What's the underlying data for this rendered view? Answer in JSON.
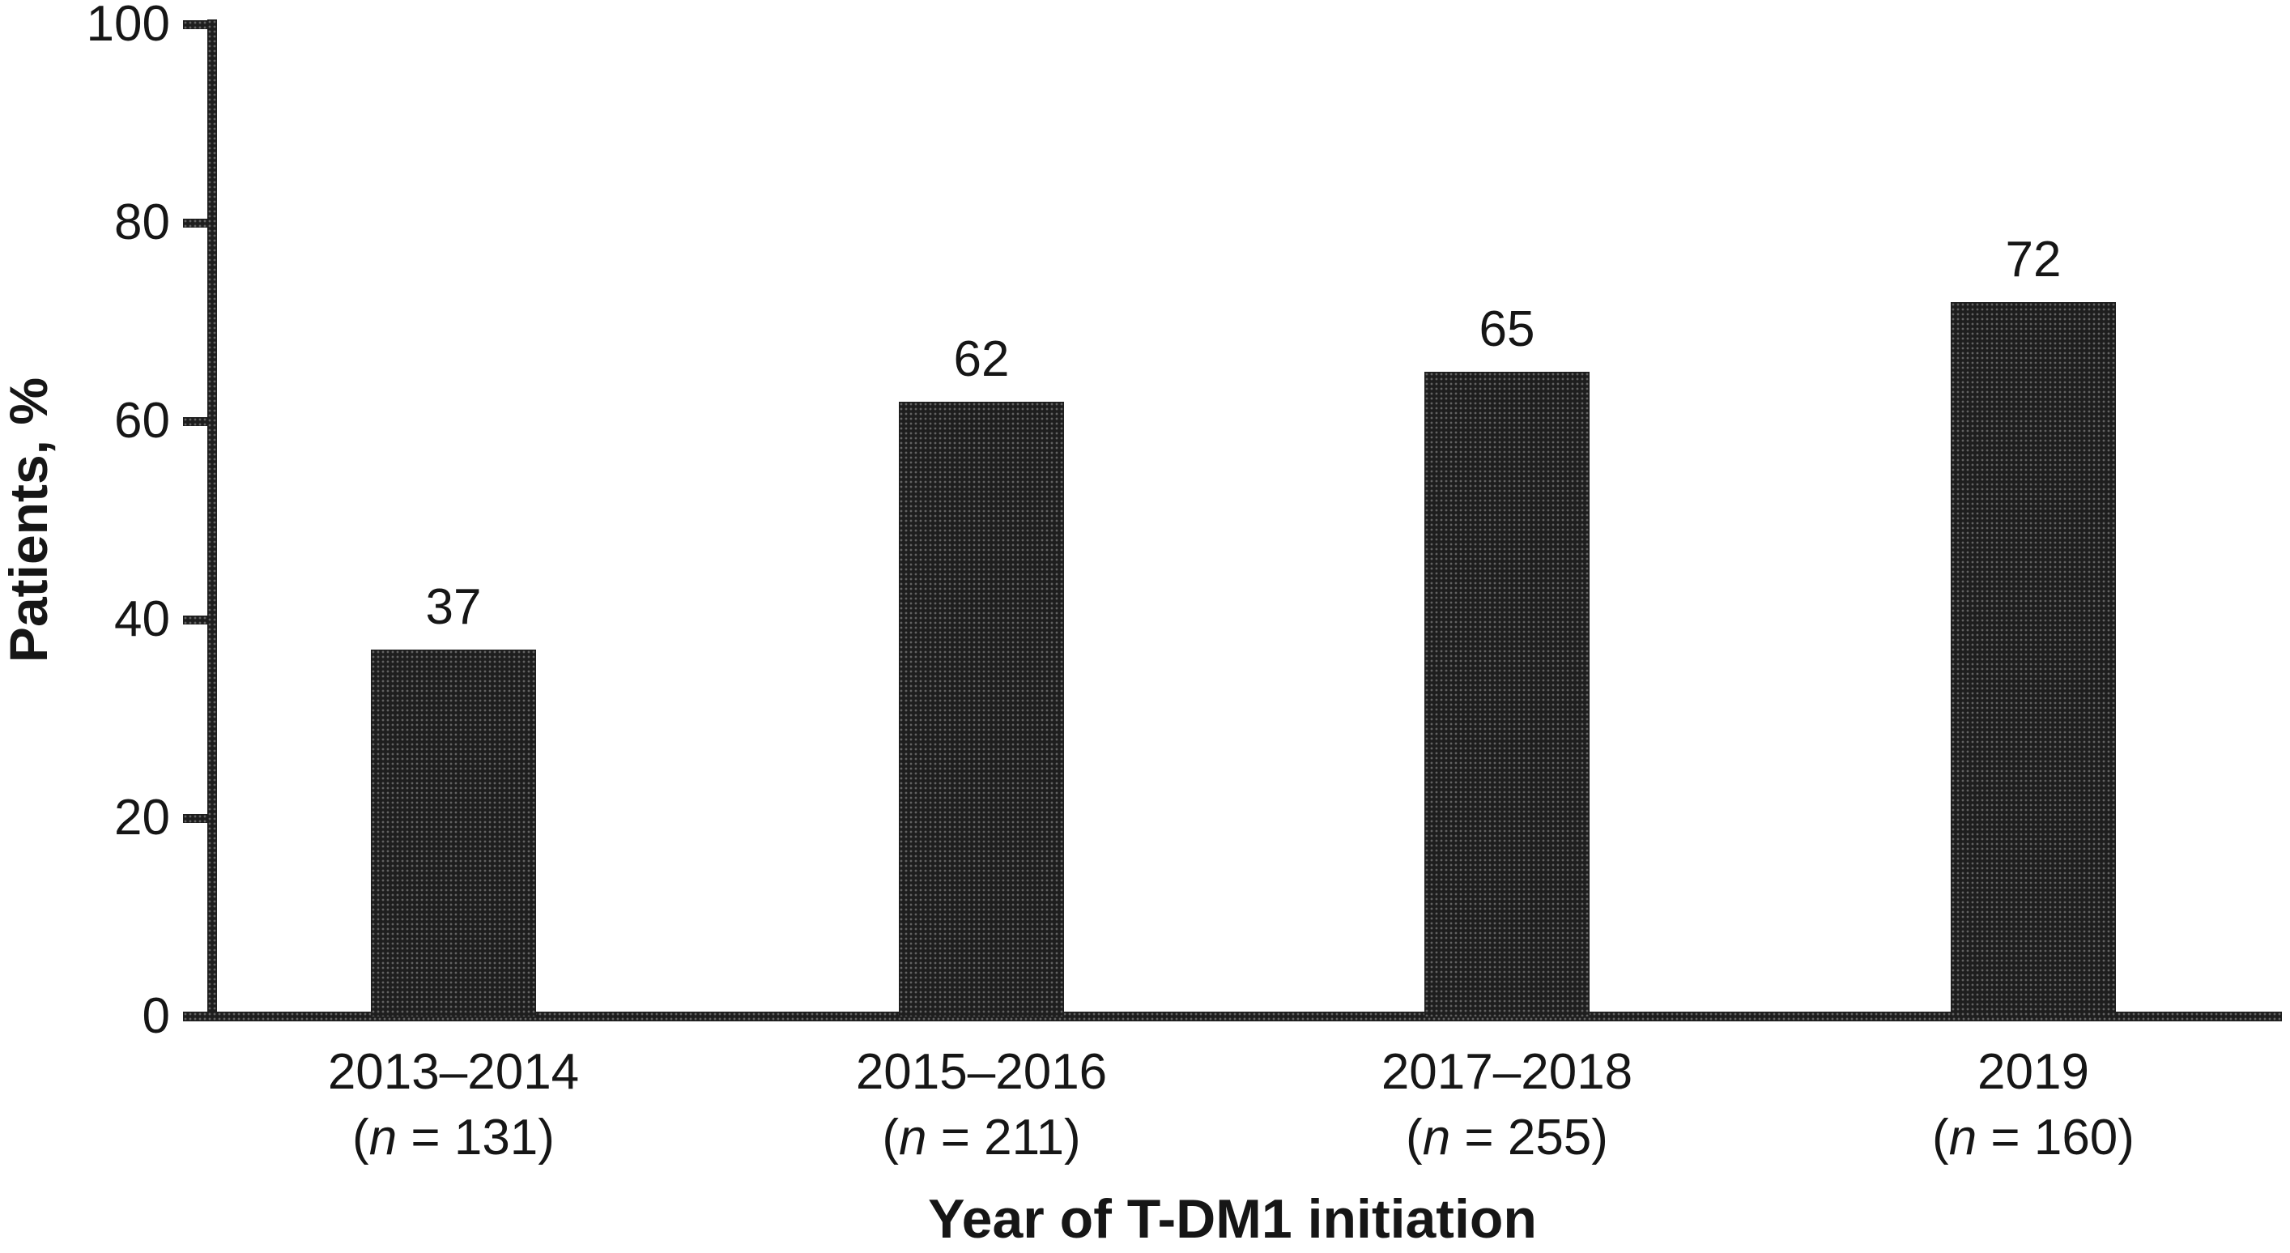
{
  "figure": {
    "background": "#ffffff",
    "ink_color": "#1e1e1e",
    "text_color": "#161616"
  },
  "chart_data": {
    "type": "bar",
    "title": "",
    "xlabel": "Year of T-DM1 initiation",
    "ylabel": "Patients, %",
    "ylim": [
      0,
      100
    ],
    "yticks": [
      "0",
      "20",
      "40",
      "60",
      "80",
      "100"
    ],
    "grid": false,
    "legend": false,
    "bar_fill": "dark halftone (near-black dotted)",
    "categories": [
      "2013–2014",
      "2015–2016",
      "2017–2018",
      "2019"
    ],
    "category_sublabels": [
      "(n = 131)",
      "(n = 211)",
      "(n = 255)",
      "(n = 160)"
    ],
    "sample_sizes": [
      "131",
      "211",
      "255",
      "160"
    ],
    "values": [
      37,
      62,
      65,
      72
    ],
    "value_labels": [
      "37",
      "62",
      "65",
      "72"
    ]
  }
}
